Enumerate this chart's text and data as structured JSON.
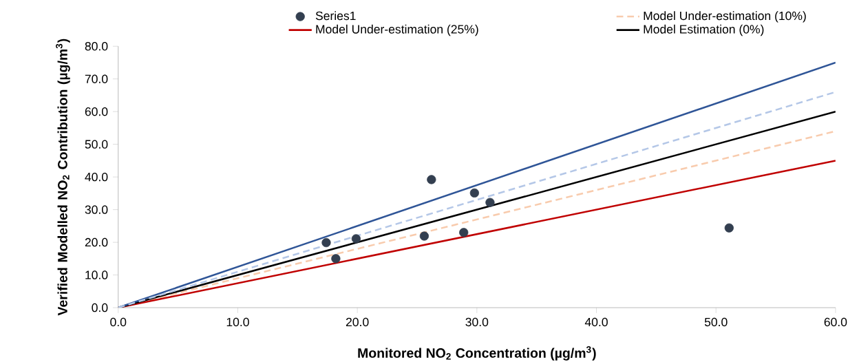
{
  "chart_data": {
    "type": "scatter",
    "xlabel": "Monitored NO$_{2}$ Concentration (µg/m$^{3}$)",
    "ylabel": "Verified Modelled NO$_{2}$ Contribution (µg/m$^{3}$)",
    "xlim": [
      0,
      60
    ],
    "ylim": [
      0,
      80
    ],
    "xticks": [
      {
        "value": 0,
        "label": "0.0"
      },
      {
        "value": 10,
        "label": "10.0"
      },
      {
        "value": 20,
        "label": "20.0"
      },
      {
        "value": 30,
        "label": "30.0"
      },
      {
        "value": 40,
        "label": "40.0"
      },
      {
        "value": 50,
        "label": "50.0"
      },
      {
        "value": 60,
        "label": "60.0"
      }
    ],
    "yticks": [
      {
        "value": 0,
        "label": "0.0"
      },
      {
        "value": 10,
        "label": "10.0"
      },
      {
        "value": 20,
        "label": "20.0"
      },
      {
        "value": 30,
        "label": "30.0"
      },
      {
        "value": 40,
        "label": "40.0"
      },
      {
        "value": 50,
        "label": "50.0"
      },
      {
        "value": 60,
        "label": "60.0"
      },
      {
        "value": 70,
        "label": "70.0"
      },
      {
        "value": 80,
        "label": "80.0"
      }
    ],
    "grid": false,
    "legend": "top",
    "series": [
      {
        "name": "Series1",
        "marker": "circle",
        "color": "#333f50",
        "x": [
          17.4,
          18.2,
          19.9,
          25.6,
          26.2,
          28.9,
          29.8,
          31.1,
          51.1
        ],
        "values": [
          19.9,
          15.0,
          21.1,
          21.9,
          39.2,
          23.0,
          35.1,
          32.2,
          24.4
        ]
      },
      {
        "name": "Model Under-estimation (10%)",
        "type": "line",
        "line_style": "dashed",
        "color": "#f8cbad",
        "x": [
          0,
          60
        ],
        "values": [
          0,
          54
        ]
      },
      {
        "name": "Model Under-estimation (25%)",
        "type": "line",
        "line_style": "solid",
        "color": "#c00000",
        "x": [
          0,
          60
        ],
        "values": [
          0,
          45
        ]
      },
      {
        "name": "Model Estimation (0%)",
        "type": "line",
        "line_style": "solid",
        "color": "#000000",
        "x": [
          0,
          60
        ],
        "values": [
          0,
          60
        ]
      },
      {
        "type": "line",
        "line_style": "solid",
        "color": "#2f5597",
        "x": [
          0,
          60
        ],
        "values": [
          0,
          75
        ]
      },
      {
        "type": "line",
        "line_style": "dashed",
        "color": "#b4c7e7",
        "x": [
          0,
          60
        ],
        "values": [
          0,
          66
        ]
      }
    ]
  }
}
